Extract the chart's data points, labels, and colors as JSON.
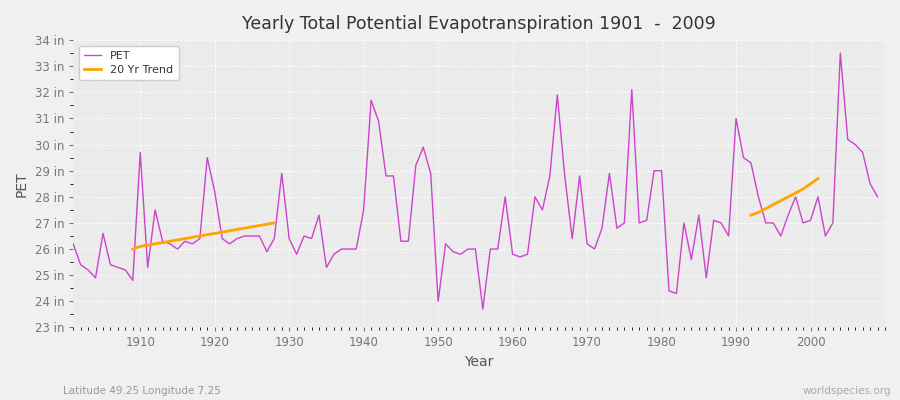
{
  "title": "Yearly Total Potential Evapotranspiration 1901  -  2009",
  "xlabel": "Year",
  "ylabel": "PET",
  "subtitle": "Latitude 49.25 Longitude 7.25",
  "watermark": "worldspecies.org",
  "bg_color": "#f0f0f0",
  "plot_bg_color": "#ebebeb",
  "line_color": "#cc44cc",
  "trend_color": "#ffa500",
  "ylim": [
    23,
    34
  ],
  "yticks": [
    23,
    24,
    25,
    26,
    27,
    28,
    29,
    30,
    31,
    32,
    33,
    34
  ],
  "xlim": [
    1901,
    2010
  ],
  "xticks": [
    1910,
    1920,
    1930,
    1940,
    1950,
    1960,
    1970,
    1980,
    1990,
    2000
  ],
  "years": [
    1901,
    1902,
    1903,
    1904,
    1905,
    1906,
    1907,
    1908,
    1909,
    1910,
    1911,
    1912,
    1913,
    1914,
    1915,
    1916,
    1917,
    1918,
    1919,
    1920,
    1921,
    1922,
    1923,
    1924,
    1925,
    1926,
    1927,
    1928,
    1929,
    1930,
    1931,
    1932,
    1933,
    1934,
    1935,
    1936,
    1937,
    1938,
    1939,
    1940,
    1941,
    1942,
    1943,
    1944,
    1945,
    1946,
    1947,
    1948,
    1949,
    1950,
    1951,
    1952,
    1953,
    1954,
    1955,
    1956,
    1957,
    1958,
    1959,
    1960,
    1961,
    1962,
    1963,
    1964,
    1965,
    1966,
    1967,
    1968,
    1969,
    1970,
    1971,
    1972,
    1973,
    1974,
    1975,
    1976,
    1977,
    1978,
    1979,
    1980,
    1981,
    1982,
    1983,
    1984,
    1985,
    1986,
    1987,
    1988,
    1989,
    1990,
    1991,
    1992,
    1993,
    1994,
    1995,
    1996,
    1997,
    1998,
    1999,
    2000,
    2001,
    2002,
    2003,
    2004,
    2005,
    2006,
    2007,
    2008,
    2009
  ],
  "pet": [
    26.2,
    25.4,
    25.2,
    24.9,
    26.6,
    25.4,
    25.3,
    25.2,
    24.8,
    29.7,
    25.3,
    27.5,
    26.3,
    26.2,
    26.0,
    26.3,
    26.2,
    26.4,
    29.5,
    28.2,
    26.4,
    26.2,
    26.4,
    26.5,
    26.5,
    26.5,
    25.9,
    26.4,
    28.9,
    26.4,
    25.8,
    26.5,
    26.4,
    27.3,
    25.3,
    25.8,
    26.0,
    26.0,
    26.0,
    27.5,
    31.7,
    30.9,
    28.8,
    28.8,
    26.3,
    26.3,
    29.2,
    29.9,
    28.9,
    24.0,
    26.2,
    25.9,
    25.8,
    26.0,
    26.0,
    23.7,
    26.0,
    26.0,
    28.0,
    25.8,
    25.7,
    25.8,
    28.0,
    27.5,
    28.8,
    31.9,
    28.8,
    26.4,
    28.8,
    26.2,
    26.0,
    26.8,
    28.9,
    26.8,
    27.0,
    32.1,
    27.0,
    27.1,
    29.0,
    29.0,
    24.4,
    24.3,
    27.0,
    25.6,
    27.3,
    24.9,
    27.1,
    27.0,
    26.5,
    31.0,
    29.5,
    29.3,
    28.0,
    27.0,
    27.0,
    26.5,
    27.3,
    28.0,
    27.0,
    27.1,
    28.0,
    26.5,
    27.0,
    33.5,
    30.2,
    30.0,
    29.7,
    28.5,
    28.0
  ],
  "trend_seg1_years": [
    1909,
    1910,
    1911,
    1912,
    1913,
    1914,
    1915,
    1916,
    1917,
    1918,
    1919,
    1920,
    1921,
    1922,
    1923,
    1924,
    1925,
    1926,
    1927,
    1928
  ],
  "trend_seg1_vals": [
    26.0,
    26.1,
    26.15,
    26.2,
    26.25,
    26.3,
    26.35,
    26.4,
    26.45,
    26.5,
    26.55,
    26.6,
    26.65,
    26.7,
    26.75,
    26.8,
    26.85,
    26.9,
    26.95,
    27.0
  ],
  "trend_seg2_years": [
    1992,
    1993,
    1994,
    1995,
    1996,
    1997,
    1998,
    1999,
    2000,
    2001
  ],
  "trend_seg2_vals": [
    27.3,
    27.4,
    27.55,
    27.7,
    27.85,
    28.0,
    28.15,
    28.3,
    28.5,
    28.7
  ]
}
